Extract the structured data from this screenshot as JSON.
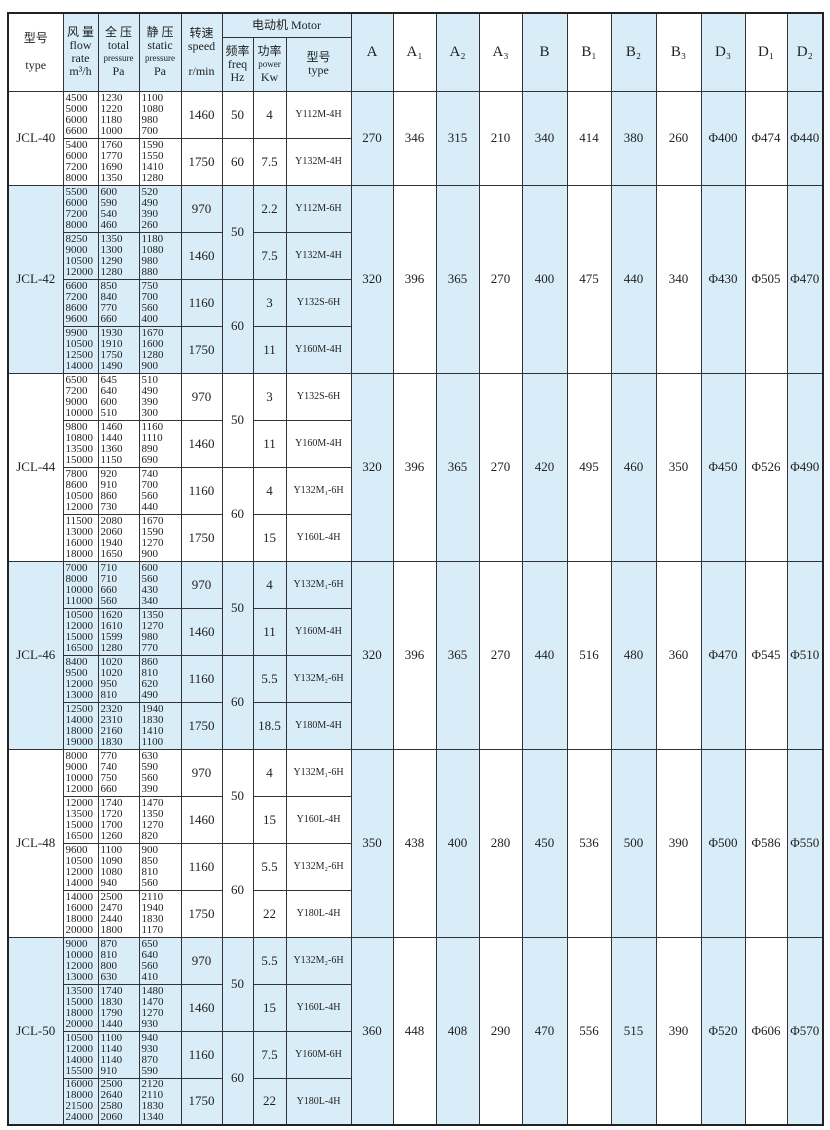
{
  "header": {
    "type": [
      "型号",
      "type"
    ],
    "flow": [
      "风 量",
      "flow",
      "rate",
      "m³/h"
    ],
    "total": [
      "全 压",
      "total",
      "pressure",
      "Pa"
    ],
    "static": [
      "静 压",
      "static",
      "pressure",
      "Pa"
    ],
    "speed": [
      "转速",
      "speed",
      "r/min"
    ],
    "motor": "电动机 Motor",
    "freq": [
      "频率",
      "freq",
      "Hz"
    ],
    "power": [
      "功率",
      "power",
      "Kw"
    ],
    "motor_type": [
      "型号",
      "type"
    ],
    "dims": [
      "A",
      "A₁",
      "A₂",
      "A₃",
      "B",
      "B₁",
      "B₂",
      "B₃",
      "D₃",
      "D₁",
      "D₂"
    ]
  },
  "models": [
    {
      "name": "JCL-40",
      "freqs": [
        50,
        60
      ],
      "groups": [
        {
          "flow": [
            4500,
            5000,
            6000,
            6600
          ],
          "total": [
            1230,
            1220,
            1180,
            1000
          ],
          "static": [
            1100,
            1080,
            980,
            700
          ],
          "speed": 1460,
          "power": 4,
          "motor": "Y112M-4H"
        },
        {
          "flow": [
            5400,
            6000,
            7200,
            8000
          ],
          "total": [
            1760,
            1770,
            1690,
            1350
          ],
          "static": [
            1590,
            1550,
            1410,
            1280
          ],
          "speed": 1750,
          "power": 7.5,
          "motor": "Y132M-4H"
        }
      ],
      "dims": [
        270,
        346,
        315,
        210,
        340,
        414,
        380,
        260,
        "Φ400",
        "Φ474",
        "Φ440"
      ]
    },
    {
      "name": "JCL-42",
      "freqs": [
        50,
        60
      ],
      "groups": [
        {
          "flow": [
            5500,
            6000,
            7200,
            8000
          ],
          "total": [
            600,
            590,
            540,
            460
          ],
          "static": [
            520,
            490,
            390,
            260
          ],
          "speed": 970,
          "power": 2.2,
          "motor": "Y112M-6H"
        },
        {
          "flow": [
            8250,
            9000,
            10500,
            12000
          ],
          "total": [
            1350,
            1300,
            1290,
            1280
          ],
          "static": [
            1180,
            1080,
            980,
            880
          ],
          "speed": 1460,
          "power": 7.5,
          "motor": "Y132M-4H"
        },
        {
          "flow": [
            6600,
            7200,
            8600,
            9600
          ],
          "total": [
            850,
            840,
            770,
            660
          ],
          "static": [
            750,
            700,
            560,
            400
          ],
          "speed": 1160,
          "power": 3,
          "motor": "Y132S-6H"
        },
        {
          "flow": [
            9900,
            10500,
            12500,
            14000
          ],
          "total": [
            1930,
            1910,
            1750,
            1490
          ],
          "static": [
            1670,
            1600,
            1280,
            900
          ],
          "speed": 1750,
          "power": 11,
          "motor": "Y160M-4H"
        }
      ],
      "dims": [
        320,
        396,
        365,
        270,
        400,
        475,
        440,
        340,
        "Φ430",
        "Φ505",
        "Φ470"
      ]
    },
    {
      "name": "JCL-44",
      "freqs": [
        50,
        60
      ],
      "groups": [
        {
          "flow": [
            6500,
            7200,
            9000,
            10000
          ],
          "total": [
            645,
            640,
            600,
            510
          ],
          "static": [
            510,
            490,
            390,
            300
          ],
          "speed": 970,
          "power": 3,
          "motor": "Y132S-6H"
        },
        {
          "flow": [
            9800,
            10800,
            13500,
            15000
          ],
          "total": [
            1460,
            1440,
            1360,
            1150
          ],
          "static": [
            1160,
            1110,
            890,
            690
          ],
          "speed": 1460,
          "power": 11,
          "motor": "Y160M-4H"
        },
        {
          "flow": [
            7800,
            8600,
            10500,
            12000
          ],
          "total": [
            920,
            910,
            860,
            730
          ],
          "static": [
            740,
            700,
            560,
            440
          ],
          "speed": 1160,
          "power": 4,
          "motor": "Y132M₁-6H"
        },
        {
          "flow": [
            11500,
            13000,
            16000,
            18000
          ],
          "total": [
            2080,
            2060,
            1940,
            1650
          ],
          "static": [
            1670,
            1590,
            1270,
            900
          ],
          "speed": 1750,
          "power": 15,
          "motor": "Y160L-4H"
        }
      ],
      "dims": [
        320,
        396,
        365,
        270,
        420,
        495,
        460,
        350,
        "Φ450",
        "Φ526",
        "Φ490"
      ]
    },
    {
      "name": "JCL-46",
      "freqs": [
        50,
        60
      ],
      "groups": [
        {
          "flow": [
            7000,
            8000,
            10000,
            11000
          ],
          "total": [
            710,
            710,
            660,
            560
          ],
          "static": [
            600,
            560,
            430,
            340
          ],
          "speed": 970,
          "power": 4,
          "motor": "Y132M₁-6H"
        },
        {
          "flow": [
            10500,
            12000,
            15000,
            16500
          ],
          "total": [
            1620,
            1610,
            1599,
            1280
          ],
          "static": [
            1350,
            1270,
            980,
            770
          ],
          "speed": 1460,
          "power": 11,
          "motor": "Y160M-4H"
        },
        {
          "flow": [
            8400,
            9500,
            12000,
            13000
          ],
          "total": [
            1020,
            1020,
            950,
            810
          ],
          "static": [
            860,
            810,
            620,
            490
          ],
          "speed": 1160,
          "power": 5.5,
          "motor": "Y132M₂-6H"
        },
        {
          "flow": [
            12500,
            14000,
            18000,
            19000
          ],
          "total": [
            2320,
            2310,
            2160,
            1830
          ],
          "static": [
            1940,
            1830,
            1410,
            1100
          ],
          "speed": 1750,
          "power": 18.5,
          "motor": "Y180M-4H"
        }
      ],
      "dims": [
        320,
        396,
        365,
        270,
        440,
        516,
        480,
        360,
        "Φ470",
        "Φ545",
        "Φ510"
      ]
    },
    {
      "name": "JCL-48",
      "freqs": [
        50,
        60
      ],
      "groups": [
        {
          "flow": [
            8000,
            9000,
            10000,
            12000
          ],
          "total": [
            770,
            740,
            750,
            660
          ],
          "static": [
            630,
            590,
            560,
            390
          ],
          "speed": 970,
          "power": 4,
          "motor": "Y132M₁-6H"
        },
        {
          "flow": [
            12000,
            13500,
            15000,
            16500
          ],
          "total": [
            1740,
            1720,
            1700,
            1260
          ],
          "static": [
            1470,
            1350,
            1270,
            820
          ],
          "speed": 1460,
          "power": 15,
          "motor": "Y160L-4H"
        },
        {
          "flow": [
            9600,
            10500,
            12000,
            14000
          ],
          "total": [
            1100,
            1090,
            1080,
            940
          ],
          "static": [
            900,
            850,
            810,
            560
          ],
          "speed": 1160,
          "power": 5.5,
          "motor": "Y132M₂-6H"
        },
        {
          "flow": [
            14000,
            16000,
            18000,
            20000
          ],
          "total": [
            2500,
            2470,
            2440,
            1800
          ],
          "static": [
            2110,
            1940,
            1830,
            1170
          ],
          "speed": 1750,
          "power": 22,
          "motor": "Y180L-4H"
        }
      ],
      "dims": [
        350,
        438,
        400,
        280,
        450,
        536,
        500,
        390,
        "Φ500",
        "Φ586",
        "Φ550"
      ]
    },
    {
      "name": "JCL-50",
      "freqs": [
        50,
        60
      ],
      "groups": [
        {
          "flow": [
            9000,
            10000,
            12000,
            13000
          ],
          "total": [
            870,
            810,
            800,
            630
          ],
          "static": [
            650,
            640,
            560,
            410
          ],
          "speed": 970,
          "power": 5.5,
          "motor": "Y132M₂-6H"
        },
        {
          "flow": [
            13500,
            15000,
            18000,
            20000
          ],
          "total": [
            1740,
            1830,
            1790,
            1440
          ],
          "static": [
            1480,
            1470,
            1270,
            930
          ],
          "speed": 1460,
          "power": 15,
          "motor": "Y160L-4H"
        },
        {
          "flow": [
            10500,
            12000,
            14000,
            15500
          ],
          "total": [
            1100,
            1140,
            1140,
            910
          ],
          "static": [
            940,
            930,
            870,
            590
          ],
          "speed": 1160,
          "power": 7.5,
          "motor": "Y160M-6H"
        },
        {
          "flow": [
            16000,
            18000,
            21500,
            24000
          ],
          "total": [
            2500,
            2640,
            2580,
            2060
          ],
          "static": [
            2120,
            2110,
            1830,
            1340
          ],
          "speed": 1750,
          "power": 22,
          "motor": "Y180L-4H"
        }
      ],
      "dims": [
        360,
        448,
        408,
        290,
        470,
        556,
        515,
        390,
        "Φ520",
        "Φ606",
        "Φ570"
      ]
    }
  ]
}
